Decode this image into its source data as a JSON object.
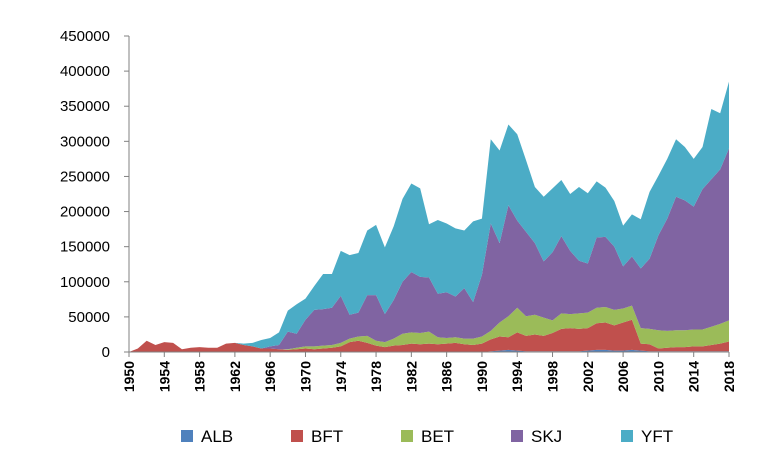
{
  "chart_data": {
    "type": "area",
    "stacked": true,
    "x": [
      1950,
      1951,
      1952,
      1953,
      1954,
      1955,
      1956,
      1957,
      1958,
      1959,
      1960,
      1961,
      1962,
      1963,
      1964,
      1965,
      1966,
      1967,
      1968,
      1969,
      1970,
      1971,
      1972,
      1973,
      1974,
      1975,
      1976,
      1977,
      1978,
      1979,
      1980,
      1981,
      1982,
      1983,
      1984,
      1985,
      1986,
      1987,
      1988,
      1989,
      1990,
      1991,
      1992,
      1993,
      1994,
      1995,
      1996,
      1997,
      1998,
      1999,
      2000,
      2001,
      2002,
      2003,
      2004,
      2005,
      2006,
      2007,
      2008,
      2009,
      2010,
      2011,
      2012,
      2013,
      2014,
      2015,
      2016,
      2017,
      2018
    ],
    "xtick_labels": [
      "1950",
      "1954",
      "1958",
      "1962",
      "1966",
      "1970",
      "1974",
      "1978",
      "1982",
      "1986",
      "1990",
      "1994",
      "1998",
      "2002",
      "2006",
      "2010",
      "2014",
      "2018"
    ],
    "ylim": [
      0,
      450000
    ],
    "yticks": [
      0,
      50000,
      100000,
      150000,
      200000,
      250000,
      300000,
      350000,
      400000,
      450000
    ],
    "ytick_labels": [
      "0",
      "50000",
      "100000",
      "150000",
      "200000",
      "250000",
      "300000",
      "350000",
      "400000",
      "450000"
    ],
    "legend_position": "bottom",
    "grid": false,
    "series": [
      {
        "name": "ALB",
        "color": "#4f81bd",
        "values": [
          0,
          0,
          0,
          0,
          0,
          0,
          0,
          0,
          0,
          0,
          0,
          0,
          0,
          0,
          0,
          0,
          0,
          0,
          0,
          0,
          0,
          0,
          0,
          0,
          0,
          0,
          0,
          0,
          0,
          0,
          0,
          0,
          0,
          0,
          0,
          0,
          0,
          0,
          0,
          0,
          0,
          1000,
          2000,
          3000,
          2000,
          1000,
          1000,
          1000,
          1000,
          1000,
          1000,
          1000,
          2000,
          3000,
          3000,
          2000,
          2000,
          3000,
          2000,
          1000,
          1000,
          1000,
          1000,
          1000,
          1000,
          1000,
          1000,
          1000,
          1000
        ]
      },
      {
        "name": "BFT",
        "color": "#c0504d",
        "values": [
          0,
          5000,
          16000,
          10000,
          14000,
          13000,
          4000,
          6000,
          7000,
          6000,
          6000,
          12000,
          13000,
          10000,
          8000,
          5000,
          5000,
          4000,
          3000,
          4000,
          5000,
          4000,
          5000,
          6000,
          8000,
          14000,
          16000,
          13000,
          9000,
          7000,
          9000,
          10000,
          12000,
          11000,
          12000,
          11000,
          12000,
          13000,
          11000,
          10000,
          12000,
          17000,
          20000,
          18000,
          26000,
          22000,
          24000,
          22000,
          26000,
          32000,
          33000,
          32000,
          32000,
          38000,
          39000,
          36000,
          40000,
          43000,
          10000,
          10000,
          4000,
          5000,
          6000,
          6000,
          7000,
          7000,
          9000,
          11000,
          14000
        ]
      },
      {
        "name": "BET",
        "color": "#9bbb59",
        "values": [
          0,
          0,
          0,
          0,
          0,
          0,
          0,
          0,
          0,
          0,
          0,
          0,
          0,
          0,
          0,
          0,
          0,
          0,
          1000,
          2000,
          3000,
          4000,
          4000,
          4000,
          5000,
          5000,
          6000,
          10000,
          7000,
          7000,
          10000,
          16000,
          16000,
          16000,
          17000,
          10000,
          8000,
          8000,
          8000,
          9000,
          10000,
          12000,
          20000,
          30000,
          35000,
          28000,
          28000,
          26000,
          18000,
          22000,
          20000,
          22000,
          22000,
          22000,
          22000,
          22000,
          20000,
          20000,
          22000,
          22000,
          26000,
          24000,
          24000,
          24000,
          24000,
          24000,
          26000,
          28000,
          30000
        ]
      },
      {
        "name": "SKJ",
        "color": "#8064a2",
        "values": [
          0,
          0,
          0,
          0,
          0,
          0,
          0,
          0,
          0,
          0,
          0,
          0,
          0,
          0,
          0,
          0,
          3000,
          6000,
          25000,
          20000,
          38000,
          52000,
          52000,
          53000,
          67000,
          34000,
          34000,
          58000,
          65000,
          40000,
          55000,
          74000,
          86000,
          80000,
          77000,
          62000,
          65000,
          58000,
          72000,
          52000,
          88000,
          153000,
          113000,
          158000,
          124000,
          120000,
          102000,
          80000,
          97000,
          110000,
          90000,
          75000,
          70000,
          100000,
          100000,
          90000,
          60000,
          70000,
          85000,
          100000,
          135000,
          160000,
          190000,
          185000,
          175000,
          200000,
          210000,
          220000,
          245000
        ]
      },
      {
        "name": "YFT",
        "color": "#4bacc6",
        "values": [
          0,
          0,
          0,
          0,
          0,
          0,
          0,
          0,
          0,
          0,
          0,
          0,
          0,
          2000,
          5000,
          12000,
          12000,
          18000,
          30000,
          42000,
          30000,
          34000,
          50000,
          48000,
          64000,
          85000,
          85000,
          92000,
          100000,
          95000,
          105000,
          118000,
          126000,
          126000,
          76000,
          105000,
          98000,
          97000,
          82000,
          115000,
          80000,
          120000,
          132000,
          115000,
          123000,
          102000,
          80000,
          92000,
          91000,
          80000,
          81000,
          105000,
          100000,
          80000,
          70000,
          65000,
          58000,
          60000,
          70000,
          95000,
          85000,
          85000,
          82000,
          76000,
          68000,
          60000,
          100000,
          80000,
          95000
        ]
      }
    ]
  }
}
